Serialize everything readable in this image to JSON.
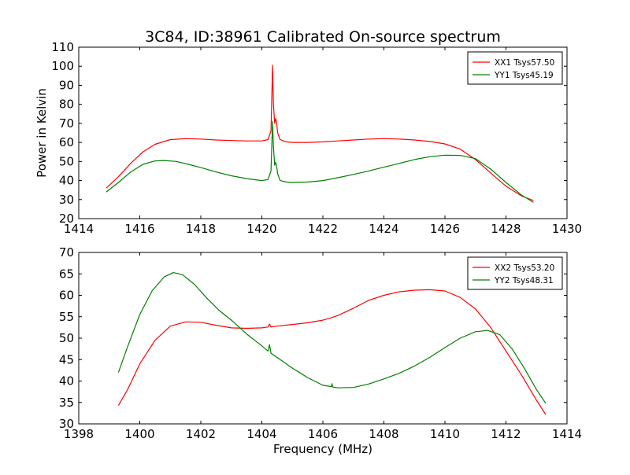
{
  "figure": {
    "title": "3C84, ID:38961 Calibrated On-source spectrum",
    "ylabel": "Power in Kelvin",
    "xlabel": "Frequency (MHz)"
  },
  "chart_data": [
    {
      "type": "line",
      "title": "3C84, ID:38961 Calibrated On-source spectrum",
      "xlabel": "",
      "ylabel": "Power in Kelvin",
      "xlim": [
        1414,
        1430
      ],
      "ylim": [
        20,
        110
      ],
      "xticks": [
        1414,
        1416,
        1418,
        1420,
        1422,
        1424,
        1426,
        1428,
        1430
      ],
      "yticks": [
        20,
        30,
        40,
        50,
        60,
        70,
        80,
        90,
        100,
        110
      ],
      "grid": false,
      "legend_position": "top-right",
      "series": [
        {
          "name": "XX1 Tsys57.50",
          "color": "#ff0000",
          "x": [
            1414.9,
            1415.3,
            1415.7,
            1416.1,
            1416.5,
            1417.0,
            1417.5,
            1418.0,
            1418.5,
            1419.0,
            1419.5,
            1420.0,
            1420.2,
            1420.3,
            1420.35,
            1420.38,
            1420.42,
            1420.45,
            1420.48,
            1420.52,
            1420.6,
            1420.8,
            1421.0,
            1421.5,
            1422.0,
            1422.5,
            1423.0,
            1423.5,
            1424.0,
            1424.5,
            1425.0,
            1425.5,
            1426.0,
            1426.5,
            1427.0,
            1427.5,
            1428.0,
            1428.5,
            1428.9
          ],
          "y": [
            36.0,
            42.0,
            49.0,
            55.0,
            59.0,
            61.5,
            62.0,
            61.8,
            61.3,
            61.0,
            60.8,
            60.8,
            61.5,
            66.0,
            100.5,
            80.0,
            70.0,
            72.5,
            71.0,
            65.0,
            61.5,
            60.3,
            60.0,
            60.0,
            60.3,
            60.8,
            61.3,
            61.8,
            62.0,
            61.8,
            61.3,
            60.5,
            59.2,
            56.5,
            51.0,
            44.0,
            37.0,
            32.0,
            29.5
          ]
        },
        {
          "name": "YY1 Tsys45.19",
          "color": "#008000",
          "x": [
            1414.9,
            1415.3,
            1415.7,
            1416.1,
            1416.5,
            1416.8,
            1417.2,
            1417.6,
            1418.0,
            1418.5,
            1419.0,
            1419.5,
            1420.0,
            1420.2,
            1420.3,
            1420.35,
            1420.38,
            1420.42,
            1420.45,
            1420.48,
            1420.52,
            1420.6,
            1420.8,
            1421.0,
            1421.5,
            1422.0,
            1422.5,
            1423.0,
            1423.5,
            1424.0,
            1424.5,
            1425.0,
            1425.5,
            1426.0,
            1426.5,
            1427.0,
            1427.5,
            1428.0,
            1428.5,
            1428.9
          ],
          "y": [
            34.0,
            39.0,
            44.5,
            48.5,
            50.3,
            50.5,
            50.0,
            48.5,
            46.8,
            44.5,
            42.5,
            41.0,
            40.0,
            40.5,
            45.0,
            71.0,
            58.0,
            48.0,
            49.5,
            48.0,
            43.5,
            40.0,
            39.2,
            39.0,
            39.2,
            40.0,
            41.5,
            43.2,
            45.0,
            47.0,
            49.0,
            51.0,
            52.5,
            53.3,
            53.2,
            51.5,
            46.0,
            39.0,
            32.5,
            28.5
          ]
        }
      ]
    },
    {
      "type": "line",
      "title": "",
      "xlabel": "Frequency (MHz)",
      "ylabel": "",
      "xlim": [
        1398,
        1414
      ],
      "ylim": [
        30,
        70
      ],
      "xticks": [
        1398,
        1400,
        1402,
        1404,
        1406,
        1408,
        1410,
        1412,
        1414
      ],
      "yticks": [
        30,
        35,
        40,
        45,
        50,
        55,
        60,
        65,
        70
      ],
      "grid": false,
      "legend_position": "top-right",
      "series": [
        {
          "name": "XX2 Tsys53.20",
          "color": "#ff0000",
          "x": [
            1399.3,
            1399.6,
            1400.0,
            1400.5,
            1401.0,
            1401.5,
            1402.0,
            1402.5,
            1403.0,
            1403.5,
            1404.0,
            1404.2,
            1404.25,
            1404.3,
            1404.5,
            1405.0,
            1405.5,
            1406.0,
            1406.3,
            1406.5,
            1407.0,
            1407.5,
            1408.0,
            1408.5,
            1409.0,
            1409.5,
            1410.0,
            1410.5,
            1411.0,
            1411.5,
            1412.0,
            1412.5,
            1413.0,
            1413.3
          ],
          "y": [
            34.3,
            38.0,
            44.0,
            49.5,
            52.8,
            53.8,
            53.7,
            53.0,
            52.4,
            52.3,
            52.4,
            52.6,
            53.3,
            52.6,
            52.8,
            53.2,
            53.6,
            54.2,
            54.8,
            55.3,
            57.0,
            58.8,
            60.0,
            60.8,
            61.2,
            61.3,
            61.0,
            59.5,
            56.8,
            52.5,
            47.0,
            41.5,
            35.5,
            32.2
          ]
        },
        {
          "name": "YY2 Tsys48.31",
          "color": "#008000",
          "x": [
            1399.3,
            1399.6,
            1400.0,
            1400.4,
            1400.8,
            1401.1,
            1401.4,
            1401.8,
            1402.2,
            1402.6,
            1403.0,
            1403.5,
            1404.0,
            1404.2,
            1404.25,
            1404.3,
            1404.5,
            1405.0,
            1405.5,
            1406.0,
            1406.28,
            1406.3,
            1406.32,
            1406.5,
            1407.0,
            1407.5,
            1408.0,
            1408.5,
            1409.0,
            1409.5,
            1410.0,
            1410.5,
            1411.0,
            1411.4,
            1411.8,
            1412.2,
            1412.6,
            1413.0,
            1413.3
          ],
          "y": [
            42.0,
            48.0,
            55.5,
            61.0,
            64.3,
            65.3,
            64.8,
            62.5,
            59.3,
            56.5,
            54.2,
            51.0,
            48.2,
            47.0,
            48.5,
            46.5,
            45.5,
            43.0,
            40.8,
            39.0,
            38.7,
            39.4,
            38.6,
            38.4,
            38.5,
            39.3,
            40.5,
            41.8,
            43.5,
            45.5,
            47.8,
            50.0,
            51.5,
            51.8,
            50.8,
            47.5,
            43.0,
            38.0,
            34.8
          ]
        }
      ]
    }
  ]
}
